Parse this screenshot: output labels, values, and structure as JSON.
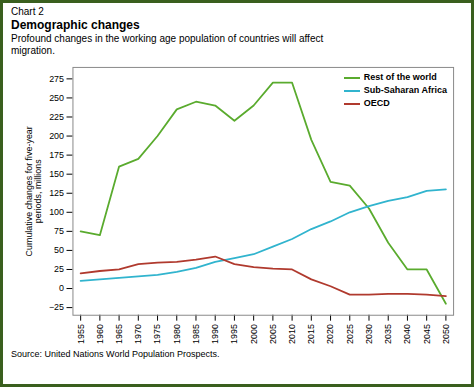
{
  "chart_data": {
    "type": "line",
    "annotations": [
      "Chart 2"
    ],
    "title": "Demographic changes",
    "subtitle": "Profound changes in the working age population of countries will affect\nmigration.",
    "source": "Source: United Nations World Population Prospects.",
    "ylabel": "Cumulative changes for five-year\nperiods, millions",
    "x": [
      1955,
      1960,
      1965,
      1970,
      1975,
      1980,
      1985,
      1990,
      1995,
      2000,
      2005,
      2010,
      2015,
      2020,
      2025,
      2030,
      2035,
      2040,
      2045,
      2050
    ],
    "series": [
      {
        "name": "Rest of the world",
        "color": "#5AAB2E",
        "values": [
          75,
          70,
          160,
          170,
          200,
          235,
          245,
          240,
          220,
          240,
          270,
          270,
          195,
          140,
          135,
          105,
          60,
          25,
          25,
          -20
        ]
      },
      {
        "name": "Sub-Saharan Africa",
        "color": "#31B4CE",
        "values": [
          10,
          12,
          14,
          16,
          18,
          22,
          27,
          35,
          40,
          45,
          55,
          65,
          78,
          88,
          100,
          108,
          115,
          120,
          128,
          130
        ]
      },
      {
        "name": "OECD",
        "color": "#B03A2E",
        "values": [
          20,
          23,
          25,
          32,
          34,
          35,
          38,
          42,
          32,
          28,
          26,
          25,
          12,
          3,
          -8,
          -8,
          -7,
          -7,
          -8,
          -10
        ]
      }
    ],
    "xlim": [
      1953,
      2052
    ],
    "xticks": [
      1955,
      1960,
      1965,
      1970,
      1975,
      1980,
      1985,
      1990,
      1995,
      2000,
      2005,
      2010,
      2015,
      2020,
      2025,
      2030,
      2035,
      2040,
      2045,
      2050
    ],
    "ylim": [
      -35,
      290
    ],
    "yticks": [
      -25,
      0,
      25,
      50,
      75,
      100,
      125,
      150,
      175,
      200,
      225,
      250,
      275
    ],
    "grid": false,
    "legend": "upper right"
  }
}
